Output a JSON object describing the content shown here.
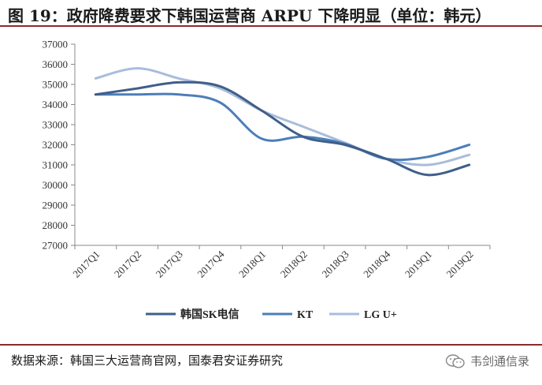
{
  "header": {
    "title": "图 19：政府降费要求下韩国运营商 ARPU 下降明显（单位：韩元）"
  },
  "footer": {
    "source": "数据来源：韩国三大运营商官网，国泰君安证券研究",
    "watermark": "韦剑通信录",
    "watermark_icon": "wechat-icon"
  },
  "chart_data": {
    "type": "line",
    "title": "政府降费要求下韩国运营商 ARPU 下降明显",
    "ylabel": "",
    "xlabel": "",
    "categories": [
      "2017Q1",
      "2017Q2",
      "2017Q3",
      "2017Q4",
      "2018Q1",
      "2018Q2",
      "2018Q3",
      "2018Q4",
      "2019Q1",
      "2019Q2"
    ],
    "ylim": [
      27000,
      37000
    ],
    "yticks": [
      27000,
      28000,
      29000,
      30000,
      31000,
      32000,
      33000,
      34000,
      35000,
      36000,
      37000
    ],
    "grid": false,
    "legend_position": "bottom",
    "series": [
      {
        "name": "韩国SK电信",
        "color": "#3f5f89",
        "values": [
          34500,
          34800,
          35100,
          34900,
          33700,
          32400,
          32000,
          31300,
          30500,
          31000
        ]
      },
      {
        "name": "KT",
        "color": "#4c7eb9",
        "values": [
          34500,
          34500,
          34500,
          34100,
          32300,
          32400,
          32050,
          31300,
          31400,
          32000
        ]
      },
      {
        "name": "LG U+",
        "color": "#a9bcdb",
        "values": [
          35300,
          35800,
          35300,
          34800,
          33700,
          32900,
          32100,
          31300,
          31000,
          31500
        ]
      }
    ]
  }
}
